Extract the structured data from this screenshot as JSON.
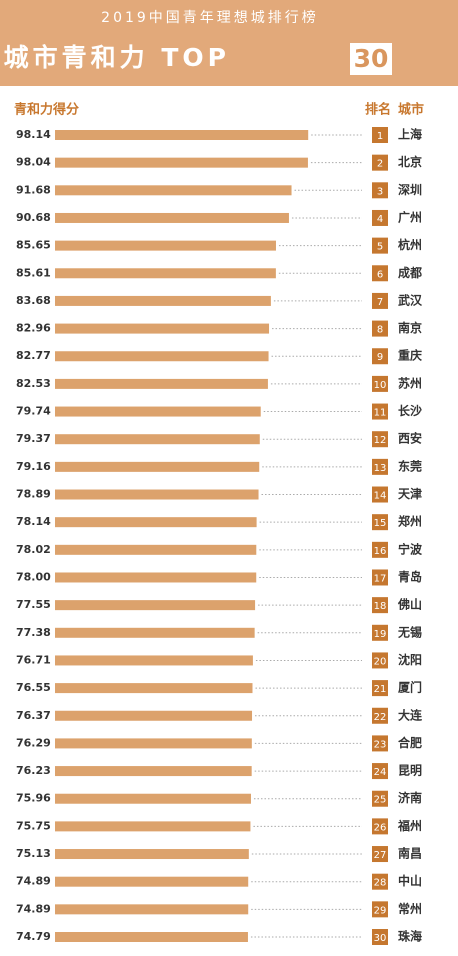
{
  "chart_data": {
    "type": "bar",
    "title": "2019中国青年理想城排行榜",
    "subtitle": "城市青和力 TOP",
    "subtitle_highlight": "30",
    "value_header": "青和力得分",
    "rank_header": "排名",
    "city_header": "城市",
    "color": "#dca26c",
    "rank_color": "#c5772f",
    "xlim": [
      0,
      100
    ],
    "categories": [
      "上海",
      "北京",
      "深圳",
      "广州",
      "杭州",
      "成都",
      "武汉",
      "南京",
      "重庆",
      "苏州",
      "长沙",
      "西安",
      "东莞",
      "天津",
      "郑州",
      "宁波",
      "青岛",
      "佛山",
      "无锡",
      "沈阳",
      "厦门",
      "大连",
      "合肥",
      "昆明",
      "济南",
      "福州",
      "南昌",
      "中山",
      "常州",
      "珠海"
    ],
    "ranks": [
      1,
      2,
      3,
      4,
      5,
      6,
      7,
      8,
      9,
      10,
      11,
      12,
      13,
      14,
      15,
      16,
      17,
      18,
      19,
      20,
      21,
      22,
      23,
      24,
      25,
      26,
      27,
      28,
      29,
      30
    ],
    "values": [
      98.14,
      98.04,
      91.68,
      90.68,
      85.65,
      85.61,
      83.68,
      82.96,
      82.77,
      82.53,
      79.74,
      79.37,
      79.16,
      78.89,
      78.14,
      78.02,
      78.0,
      77.55,
      77.38,
      76.71,
      76.55,
      76.37,
      76.29,
      76.23,
      75.96,
      75.75,
      75.13,
      74.89,
      74.89,
      74.79
    ],
    "value_labels": [
      "98.14",
      "98.04",
      "91.68",
      "90.68",
      "85.65",
      "85.61",
      "83.68",
      "82.96",
      "82.77",
      "82.53",
      "79.74",
      "79.37",
      "79.16",
      "78.89",
      "78.14",
      "78.02",
      "78.00",
      "77.55",
      "77.38",
      "76.71",
      "76.55",
      "76.37",
      "76.29",
      "76.23",
      "75.96",
      "75.75",
      "75.13",
      "74.89",
      "74.89",
      "74.79"
    ]
  }
}
